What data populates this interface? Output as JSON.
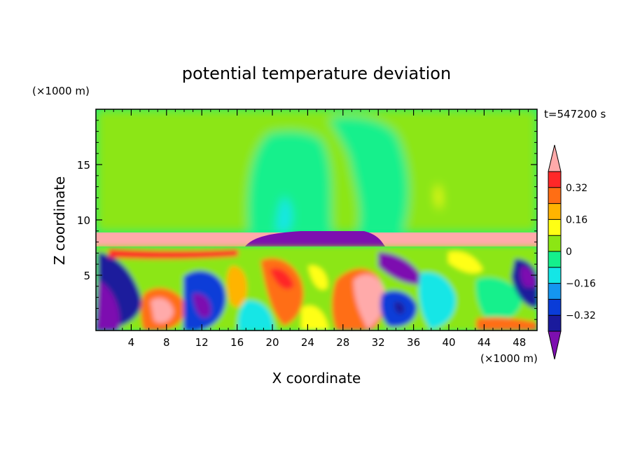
{
  "chart_data": {
    "type": "heatmap",
    "title": "potential temperature deviation",
    "xlabel": "X coordinate",
    "ylabel": "Z coordinate",
    "x_unit": "(×1000 m)",
    "y_unit": "(×1000 m)",
    "time_label": "t=547200 s",
    "xlim": [
      0,
      50
    ],
    "ylim": [
      0,
      20
    ],
    "x_ticks": [
      "4",
      "8",
      "12",
      "16",
      "20",
      "24",
      "28",
      "32",
      "36",
      "40",
      "44",
      "48"
    ],
    "y_ticks": [
      "5",
      "10",
      "15"
    ],
    "colorbar": {
      "labels": [
        "0.32",
        "0.16",
        "0",
        "−0.16",
        "−0.32"
      ],
      "label_values": [
        0.32,
        0.16,
        0,
        -0.16,
        -0.32
      ],
      "levels": [
        -0.4,
        -0.32,
        -0.24,
        -0.16,
        -0.08,
        0,
        0.08,
        0.16,
        0.24,
        0.32,
        0.4
      ],
      "colors": [
        "#7d0fb0",
        "#1a1a9c",
        "#0a3cd8",
        "#1496f0",
        "#14e6e6",
        "#14f08c",
        "#8ce614",
        "#ffff14",
        "#ffb400",
        "#ff6e14",
        "#ff2828",
        "#ffaaaa"
      ]
    }
  }
}
